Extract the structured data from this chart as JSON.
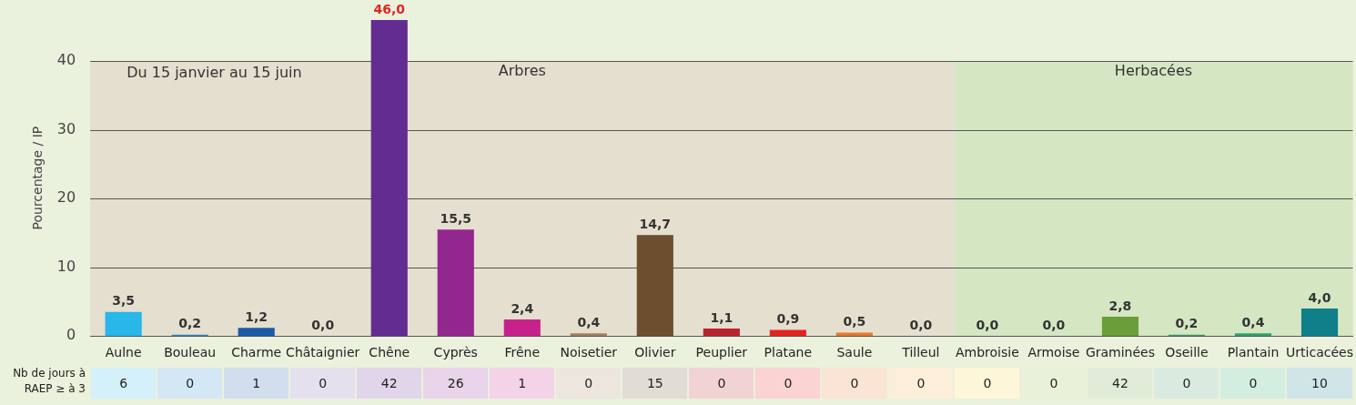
{
  "chart_data": {
    "type": "bar",
    "ylabel": "Pourcentage / IP",
    "categories": [
      "Aulne",
      "Bouleau",
      "Charme",
      "Châtaignier",
      "Chêne",
      "Cyprès",
      "Frêne",
      "Noisetier",
      "Olivier",
      "Peuplier",
      "Platane",
      "Saule",
      "Tilleul",
      "Ambroisie",
      "Armoise",
      "Graminées",
      "Oseille",
      "Plantain",
      "Urticacées"
    ],
    "values": [
      3.5,
      0.2,
      1.2,
      0.0,
      46.0,
      15.5,
      2.4,
      0.4,
      14.7,
      1.1,
      0.9,
      0.5,
      0.0,
      0.0,
      0.0,
      2.8,
      0.2,
      0.4,
      4.0
    ],
    "value_labels": [
      "3,5",
      "0,2",
      "1,2",
      "0,0",
      "46,0",
      "15,5",
      "2,4",
      "0,4",
      "14,7",
      "1,1",
      "0,9",
      "0,5",
      "0,0",
      "0,0",
      "0,0",
      "2,8",
      "0,2",
      "0,4",
      "4,0"
    ],
    "colors": [
      "#29b6e8",
      "#2a86c8",
      "#1b5aa6",
      "#7d63a8",
      "#632c91",
      "#93278f",
      "#c8218c",
      "#a08060",
      "#6b4f2f",
      "#b8232e",
      "#e42320",
      "#e8772a",
      "#f2a93b",
      "#f5d13a",
      "#8fbf3e",
      "#6a9e3a",
      "#3f9a6a",
      "#2aa36a",
      "#0f7f8a"
    ],
    "ylim": [
      0,
      46
    ],
    "yticks": [
      0,
      10,
      20,
      30,
      40
    ],
    "grid": "y",
    "legend": false,
    "bands": [
      {
        "axis": "x",
        "from": "Aulne",
        "to": "Tilleul",
        "label": "Arbres",
        "color": "#e5dfcf"
      },
      {
        "axis": "x",
        "from": "Ambroisie",
        "to": "Urticacées",
        "label": "Herbacées",
        "color": "#d5e6c3"
      }
    ],
    "annotations": [
      "Du 15 janvier au 15 juin",
      "Nb de jours à RAEP ≥ à 3",
      "6",
      "0",
      "1",
      "0",
      "42",
      "26",
      "1",
      "0",
      "15",
      "0",
      "0",
      "0",
      "0",
      "0",
      "0",
      "42",
      "0",
      "0",
      "10"
    ]
  }
}
